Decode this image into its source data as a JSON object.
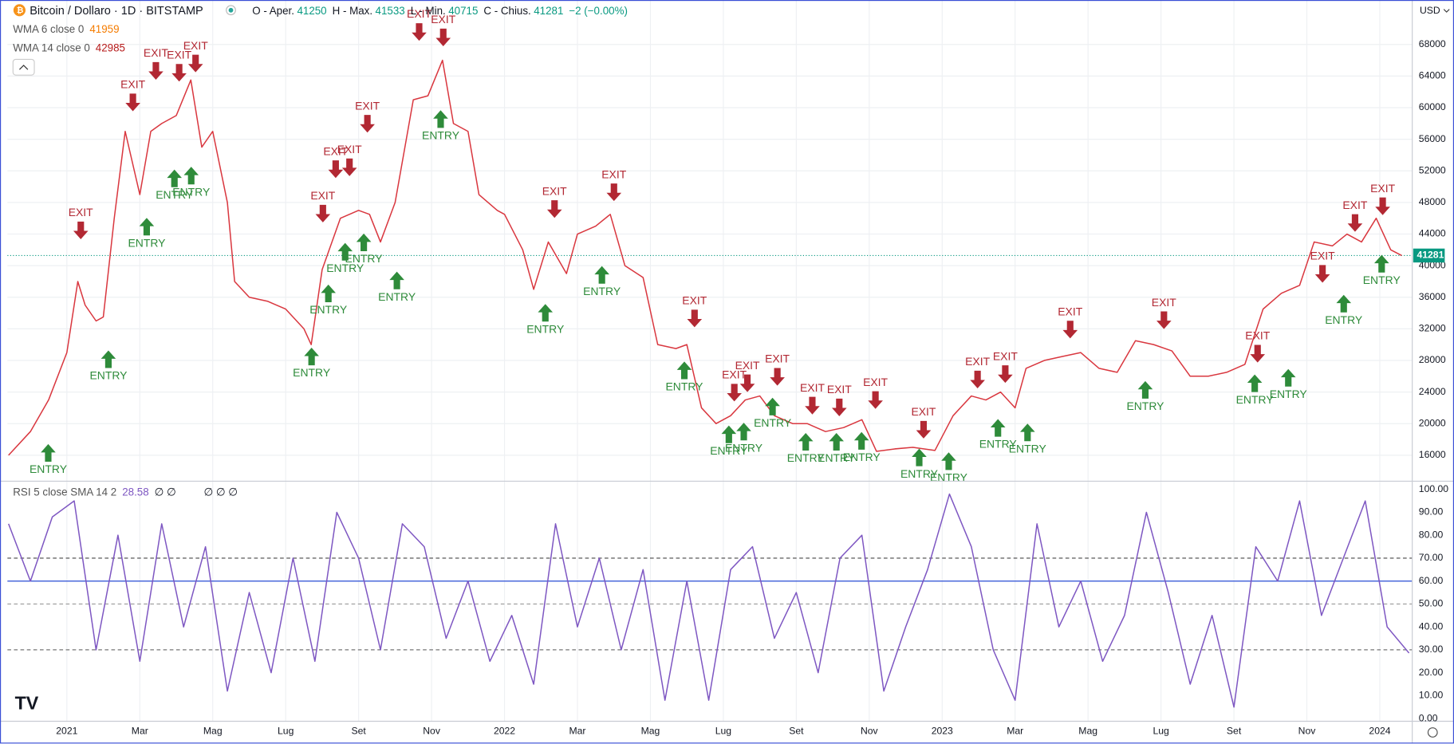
{
  "header": {
    "title": "Bitcoin / Dollaro · 1D · BITSTAMP",
    "open_label": "O - Aper.",
    "open": "41250",
    "high_label": "H - Max.",
    "high": "41533",
    "low_label": "L - Min.",
    "low": "40715",
    "close_label": "C - Chius.",
    "close": "41281",
    "change": "−2 (−0.00%)",
    "currency": "USD",
    "indicators": [
      {
        "name": "WMA 6 close 0",
        "value": "41959",
        "color": "#f57c00"
      },
      {
        "name": "WMA 14 close 0",
        "value": "42985",
        "color": "#b71c1c"
      }
    ]
  },
  "chart_data": [
    {
      "type": "line",
      "x": [
        -1.6,
        -1.0,
        -0.5,
        0,
        0.3,
        0.5,
        0.8,
        1.0,
        1.3,
        1.6,
        2.0,
        2.3,
        2.6,
        3.0,
        3.4,
        3.7,
        4.0,
        4.4,
        4.6,
        5.0,
        5.5,
        6.0,
        6.5,
        6.7,
        7.0,
        7.5,
        8.0,
        8.3,
        8.6,
        9.0,
        9.5,
        9.9,
        10.3,
        10.6,
        11.0,
        11.3,
        11.8,
        12.0,
        12.5,
        12.8,
        13.2,
        13.7,
        14.0,
        14.5,
        14.9,
        15.3,
        15.8,
        16.2,
        16.7,
        17.0,
        17.4,
        17.8,
        18.2,
        18.6,
        19.0,
        19.4,
        19.9,
        20.3,
        20.8,
        21.3,
        21.8,
        22.2,
        22.7,
        23.2,
        23.8,
        24.3,
        24.8,
        25.2,
        25.6,
        26.0,
        26.3,
        26.8,
        27.3,
        27.8,
        28.3,
        28.8,
        29.3,
        29.8,
        30.3,
        30.8,
        31.3,
        31.8,
        32.3,
        32.8,
        33.3,
        33.8,
        34.2,
        34.7,
        35.1,
        35.5,
        35.9,
        36.3,
        36.6
      ],
      "series": [
        {
          "color": "#d9373f",
          "values": [
            16000,
            19000,
            23000,
            29000,
            38000,
            35000,
            33000,
            33500,
            46000,
            57000,
            49000,
            57000,
            58000,
            59000,
            63500,
            55000,
            57000,
            48000,
            38000,
            36000,
            35500,
            34500,
            32000,
            30000,
            39500,
            46000,
            47000,
            46500,
            43000,
            48000,
            61000,
            61500,
            66000,
            58000,
            57000,
            49000,
            47000,
            46500,
            42000,
            37000,
            43000,
            39000,
            44000,
            45000,
            46500,
            40000,
            38500,
            30000,
            29500,
            30000,
            22000,
            20000,
            21000,
            23000,
            23500,
            21000,
            20000,
            20000,
            19000,
            19500,
            20500,
            16500,
            16800,
            17000,
            16600,
            21000,
            23500,
            23000,
            24000,
            22000,
            27000,
            28000,
            28500,
            29000,
            27000,
            26500,
            30500,
            30000,
            29200,
            26000,
            26000,
            26500,
            27500,
            34500,
            36500,
            37500,
            43000,
            42500,
            44000,
            43000,
            46000,
            42000,
            41281
          ]
        }
      ],
      "last_price": 41281,
      "last_color": "#089981",
      "xlim": [
        -1.63,
        36.89
      ],
      "ylim": [
        12950,
        73630
      ],
      "xticks": [
        {
          "value": 0,
          "label": "2021"
        },
        {
          "value": 2,
          "label": "Mar"
        },
        {
          "value": 4,
          "label": "Mag"
        },
        {
          "value": 6,
          "label": "Lug"
        },
        {
          "value": 8,
          "label": "Set"
        },
        {
          "value": 10,
          "label": "Nov"
        },
        {
          "value": 12,
          "label": "2022"
        },
        {
          "value": 14,
          "label": "Mar"
        },
        {
          "value": 16,
          "label": "Mag"
        },
        {
          "value": 18,
          "label": "Lug"
        },
        {
          "value": 20,
          "label": "Set"
        },
        {
          "value": 22,
          "label": "Nov"
        },
        {
          "value": 24,
          "label": "2023"
        },
        {
          "value": 26,
          "label": "Mar"
        },
        {
          "value": 28,
          "label": "Mag"
        },
        {
          "value": 30,
          "label": "Lug"
        },
        {
          "value": 32,
          "label": "Set"
        },
        {
          "value": 34,
          "label": "Nov"
        },
        {
          "value": 36,
          "label": "2024"
        }
      ],
      "yticks": [
        16000,
        20000,
        24000,
        28000,
        32000,
        36000,
        40000,
        44000,
        48000,
        52000,
        56000,
        60000,
        64000,
        68000
      ],
      "grid": true,
      "markers": [
        {
          "label": "EXIT",
          "x": 0.38,
          "y": 43350
        },
        {
          "label": "EXIT",
          "x": 1.81,
          "y": 59550
        },
        {
          "label": "EXIT",
          "x": 2.44,
          "y": 63540
        },
        {
          "label": "EXIT",
          "x": 3.08,
          "y": 63300
        },
        {
          "label": "EXIT",
          "x": 3.53,
          "y": 64480
        },
        {
          "label": "EXIT",
          "x": 7.02,
          "y": 45470
        },
        {
          "label": "EXIT",
          "x": 7.37,
          "y": 51100
        },
        {
          "label": "EXIT",
          "x": 7.75,
          "y": 51330
        },
        {
          "label": "EXIT",
          "x": 8.24,
          "y": 56850
        },
        {
          "label": "EXIT",
          "x": 9.66,
          "y": 68470
        },
        {
          "label": "EXIT",
          "x": 10.32,
          "y": 67770
        },
        {
          "label": "EXIT",
          "x": 13.37,
          "y": 46050
        },
        {
          "label": "EXIT",
          "x": 15.0,
          "y": 48170
        },
        {
          "label": "EXIT",
          "x": 17.21,
          "y": 32200
        },
        {
          "label": "EXIT",
          "x": 18.3,
          "y": 22810
        },
        {
          "label": "EXIT",
          "x": 18.66,
          "y": 23990
        },
        {
          "label": "EXIT",
          "x": 19.48,
          "y": 24810
        },
        {
          "label": "EXIT",
          "x": 20.44,
          "y": 21170
        },
        {
          "label": "EXIT",
          "x": 21.18,
          "y": 20930
        },
        {
          "label": "EXIT",
          "x": 22.17,
          "y": 21870
        },
        {
          "label": "EXIT",
          "x": 23.49,
          "y": 18120
        },
        {
          "label": "EXIT",
          "x": 24.97,
          "y": 24460
        },
        {
          "label": "EXIT",
          "x": 25.73,
          "y": 25160
        },
        {
          "label": "EXIT",
          "x": 27.51,
          "y": 30790
        },
        {
          "label": "EXIT",
          "x": 30.08,
          "y": 31970
        },
        {
          "label": "EXIT",
          "x": 32.65,
          "y": 27740
        },
        {
          "label": "EXIT",
          "x": 34.43,
          "y": 37840
        },
        {
          "label": "EXIT",
          "x": 35.32,
          "y": 44290
        },
        {
          "label": "EXIT",
          "x": 36.08,
          "y": 46400
        },
        {
          "label": "ENTRY",
          "x": -0.51,
          "y": 17410
        },
        {
          "label": "ENTRY",
          "x": 1.14,
          "y": 29270
        },
        {
          "label": "ENTRY",
          "x": 2.19,
          "y": 46050
        },
        {
          "label": "ENTRY",
          "x": 2.95,
          "y": 52160
        },
        {
          "label": "ENTRY",
          "x": 3.41,
          "y": 52510
        },
        {
          "label": "ENTRY",
          "x": 6.71,
          "y": 29620
        },
        {
          "label": "ENTRY",
          "x": 7.17,
          "y": 37600
        },
        {
          "label": "ENTRY",
          "x": 7.63,
          "y": 42880
        },
        {
          "label": "ENTRY",
          "x": 8.14,
          "y": 44060
        },
        {
          "label": "ENTRY",
          "x": 9.05,
          "y": 39240
        },
        {
          "label": "ENTRY",
          "x": 10.25,
          "y": 59670
        },
        {
          "label": "ENTRY",
          "x": 13.12,
          "y": 35140
        },
        {
          "label": "ENTRY",
          "x": 14.67,
          "y": 39950
        },
        {
          "label": "ENTRY",
          "x": 16.93,
          "y": 27860
        },
        {
          "label": "ENTRY",
          "x": 18.15,
          "y": 19760
        },
        {
          "label": "ENTRY",
          "x": 18.56,
          "y": 20110
        },
        {
          "label": "ENTRY",
          "x": 19.35,
          "y": 23280
        },
        {
          "label": "ENTRY",
          "x": 20.26,
          "y": 18820
        },
        {
          "label": "ENTRY",
          "x": 21.1,
          "y": 18820
        },
        {
          "label": "ENTRY",
          "x": 21.79,
          "y": 18940
        },
        {
          "label": "ENTRY",
          "x": 23.37,
          "y": 16830
        },
        {
          "label": "ENTRY",
          "x": 24.18,
          "y": 16360
        },
        {
          "label": "ENTRY",
          "x": 25.53,
          "y": 20580
        },
        {
          "label": "ENTRY",
          "x": 26.34,
          "y": 20000
        },
        {
          "label": "ENTRY",
          "x": 29.57,
          "y": 25390
        },
        {
          "label": "ENTRY",
          "x": 32.57,
          "y": 26220
        },
        {
          "label": "ENTRY",
          "x": 33.49,
          "y": 26920
        },
        {
          "label": "ENTRY",
          "x": 35.01,
          "y": 36310
        },
        {
          "label": "ENTRY",
          "x": 36.05,
          "y": 41360
        }
      ],
      "exit_color": "#b22833",
      "entry_color": "#2e8b3a"
    },
    {
      "type": "line",
      "title": "RSI 5 close SMA 14 2",
      "title_value": "28.58",
      "extra_a": "∅ ∅",
      "extra_b": "∅ ∅ ∅",
      "x": [
        -1.6,
        -1.0,
        -0.4,
        0.2,
        0.8,
        1.4,
        2.0,
        2.6,
        3.2,
        3.8,
        4.4,
        5.0,
        5.6,
        6.2,
        6.8,
        7.4,
        8.0,
        8.6,
        9.2,
        9.8,
        10.4,
        11.0,
        11.6,
        12.2,
        12.8,
        13.4,
        14.0,
        14.6,
        15.2,
        15.8,
        16.4,
        17.0,
        17.6,
        18.2,
        18.8,
        19.4,
        20.0,
        20.6,
        21.2,
        21.8,
        22.4,
        23.0,
        23.6,
        24.2,
        24.8,
        25.4,
        26.0,
        26.6,
        27.2,
        27.8,
        28.4,
        29.0,
        29.6,
        30.2,
        30.8,
        31.4,
        32.0,
        32.6,
        33.2,
        33.8,
        34.4,
        35.0,
        35.6,
        36.2,
        36.8
      ],
      "series": [
        {
          "color": "#7e57c2",
          "values": [
            85,
            60,
            88,
            95,
            30,
            80,
            25,
            85,
            40,
            75,
            12,
            55,
            20,
            70,
            25,
            90,
            70,
            30,
            85,
            75,
            35,
            60,
            25,
            45,
            15,
            85,
            40,
            70,
            30,
            65,
            8,
            60,
            8,
            65,
            75,
            35,
            55,
            20,
            70,
            80,
            12,
            40,
            65,
            98,
            75,
            30,
            8,
            85,
            40,
            60,
            25,
            45,
            90,
            55,
            15,
            45,
            5,
            75,
            60,
            95,
            45,
            70,
            95,
            40,
            28.58
          ]
        }
      ],
      "ylim": [
        -1.2,
        103.2
      ],
      "yticks": [
        {
          "value": 0,
          "label": "0.00"
        },
        {
          "value": 10,
          "label": "10.00"
        },
        {
          "value": 20,
          "label": "20.00"
        },
        {
          "value": 30,
          "label": "30.00"
        },
        {
          "value": 40,
          "label": "40.00"
        },
        {
          "value": 50,
          "label": "50.00"
        },
        {
          "value": 60,
          "label": "60.00"
        },
        {
          "value": 70,
          "label": "70.00"
        },
        {
          "value": 80,
          "label": "80.00"
        },
        {
          "value": 90,
          "label": "90.00"
        },
        {
          "value": 100,
          "label": "100.00"
        }
      ],
      "bands": [
        {
          "value": 70,
          "color": "#444",
          "dash": true
        },
        {
          "value": 60,
          "color": "#3b5bd9",
          "dash": false
        },
        {
          "value": 50,
          "color": "#999",
          "dash": true
        },
        {
          "value": 30,
          "color": "#777",
          "dash": true
        }
      ]
    }
  ]
}
